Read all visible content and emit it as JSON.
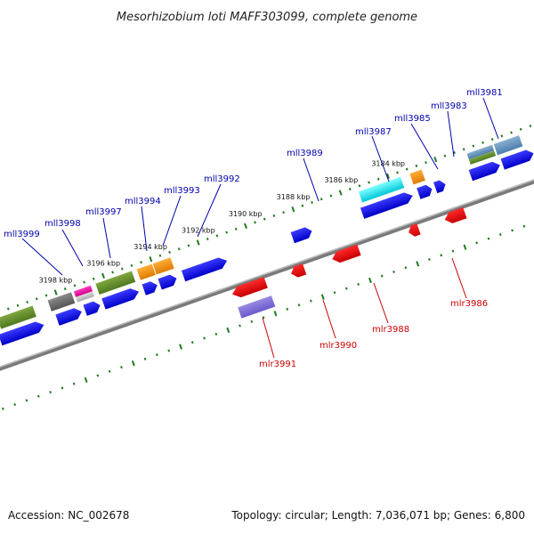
{
  "title": "Mesorhizobium loti MAFF303099, complete genome",
  "footer": {
    "accession": "Accession: NC_002678",
    "summary": "Topology: circular; Length: 7,036,071 bp; Genes: 6,800"
  },
  "colors": {
    "backbone": "#777777",
    "tick": "#1f7a1f",
    "forward_label": "#0000aa",
    "reverse_label": "#cc0000"
  },
  "scale_labels": [
    "3198 kbp",
    "3196 kbp",
    "3194 kbp",
    "3192 kbp",
    "3190 kbp",
    "3188 kbp",
    "3186 kbp",
    "3184 kbp"
  ],
  "forward_genes": [
    "mll3999",
    "mll3998",
    "mll3997",
    "mll3994",
    "mll3993",
    "mll3992",
    "mll3989",
    "mll3987",
    "mll3985",
    "mll3983",
    "mll3981"
  ],
  "reverse_genes": [
    "mlr3991",
    "mlr3990",
    "mlr3988",
    "mlr3986"
  ]
}
